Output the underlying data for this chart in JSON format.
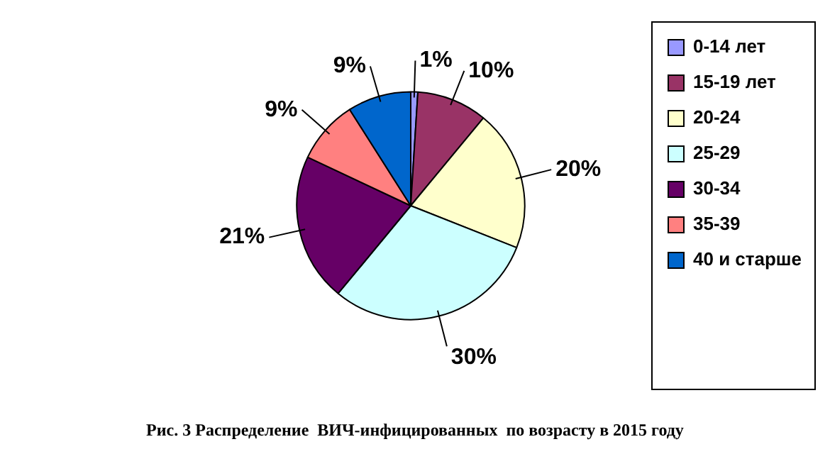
{
  "chart_data": {
    "type": "pie",
    "title": "Рис. 3 Распределение  ВИЧ-инфицированных  по возрасту в 2015 году",
    "categories": [
      "0-14 лет",
      "15-19 лет",
      "20-24",
      "25-29",
      "30-34",
      "35-39",
      "40 и старше"
    ],
    "values": [
      1,
      10,
      20,
      30,
      21,
      9,
      9
    ],
    "colors": [
      "#9999ff",
      "#993366",
      "#ffffcc",
      "#ccffff",
      "#660066",
      "#ff8080",
      "#0066cc"
    ],
    "value_labels": [
      "1%",
      "10%",
      "20%",
      "30%",
      "21%",
      "9%",
      "9%"
    ],
    "legend": "right"
  }
}
